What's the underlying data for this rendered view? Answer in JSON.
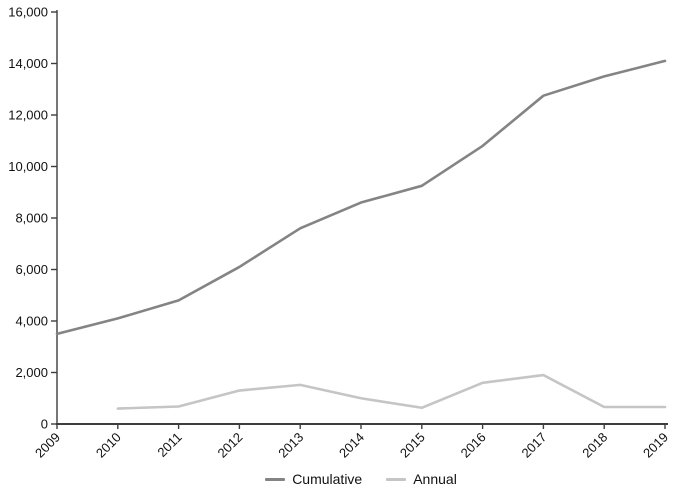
{
  "colors": {
    "background": "#ffffff",
    "axis": "#3d3d3d",
    "text": "#111111",
    "cumulative_line": "#848484",
    "annual_line": "#c5c5c5"
  },
  "legend": {
    "items": [
      {
        "label": "Cumulative",
        "color": "#848484"
      },
      {
        "label": "Annual",
        "color": "#c5c5c5"
      }
    ]
  },
  "chart_data": {
    "type": "line",
    "title": "",
    "xlabel": "",
    "ylabel": "",
    "x": [
      "2009",
      "2010",
      "2011",
      "2012",
      "2013",
      "2014",
      "2015",
      "2016",
      "2017",
      "2018",
      "2019"
    ],
    "series": [
      {
        "name": "Cumulative",
        "color": "#848484",
        "values": [
          3500,
          4100,
          4800,
          6100,
          7600,
          8600,
          9250,
          10800,
          12750,
          13500,
          14100
        ]
      },
      {
        "name": "Annual",
        "color": "#c5c5c5",
        "values": [
          null,
          600,
          680,
          1300,
          1520,
          1000,
          630,
          1600,
          1900,
          660,
          660
        ]
      }
    ],
    "ylim": [
      0,
      16000
    ],
    "ytick_step": 2000,
    "ytick_labels": [
      "0",
      "2,000",
      "4,000",
      "6,000",
      "8,000",
      "10,000",
      "12,000",
      "14,000",
      "16,000"
    ],
    "grid": false,
    "legend_position": "bottom",
    "x_tick_rotation": -45
  }
}
